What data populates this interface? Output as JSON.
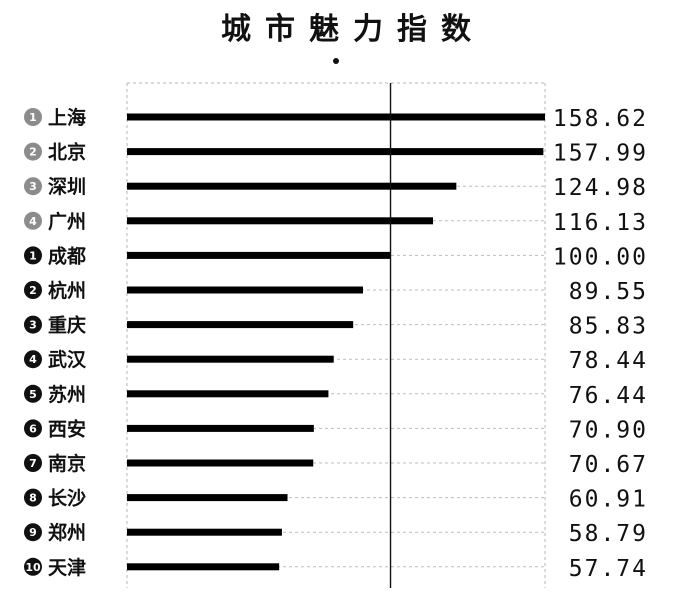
{
  "title": "城市魅力指数",
  "chart_data": {
    "type": "bar",
    "orientation": "horizontal",
    "title": "城市魅力指数",
    "reference_line": 100.0,
    "xlim": [
      0,
      158.62
    ],
    "grid": true,
    "rows": [
      {
        "rank": "1",
        "rank_color": "#8c8c8c",
        "city": "上海",
        "value": 158.62,
        "label": "158.62"
      },
      {
        "rank": "2",
        "rank_color": "#8c8c8c",
        "city": "北京",
        "value": 157.99,
        "label": "157.99"
      },
      {
        "rank": "3",
        "rank_color": "#8c8c8c",
        "city": "深圳",
        "value": 124.98,
        "label": "124.98"
      },
      {
        "rank": "4",
        "rank_color": "#8c8c8c",
        "city": "广州",
        "value": 116.13,
        "label": "116.13"
      },
      {
        "rank": "1",
        "rank_color": "#111111",
        "city": "成都",
        "value": 100.0,
        "label": "100.00"
      },
      {
        "rank": "2",
        "rank_color": "#111111",
        "city": "杭州",
        "value": 89.55,
        "label": "89.55"
      },
      {
        "rank": "3",
        "rank_color": "#111111",
        "city": "重庆",
        "value": 85.83,
        "label": "85.83"
      },
      {
        "rank": "4",
        "rank_color": "#111111",
        "city": "武汉",
        "value": 78.44,
        "label": "78.44"
      },
      {
        "rank": "5",
        "rank_color": "#111111",
        "city": "苏州",
        "value": 76.44,
        "label": "76.44"
      },
      {
        "rank": "6",
        "rank_color": "#111111",
        "city": "西安",
        "value": 70.9,
        "label": "70.90"
      },
      {
        "rank": "7",
        "rank_color": "#111111",
        "city": "南京",
        "value": 70.67,
        "label": "70.67"
      },
      {
        "rank": "8",
        "rank_color": "#111111",
        "city": "长沙",
        "value": 60.91,
        "label": "60.91"
      },
      {
        "rank": "9",
        "rank_color": "#111111",
        "city": "郑州",
        "value": 58.79,
        "label": "58.79"
      },
      {
        "rank": "10",
        "rank_color": "#111111",
        "city": "天津",
        "value": 57.74,
        "label": "57.74"
      }
    ]
  }
}
